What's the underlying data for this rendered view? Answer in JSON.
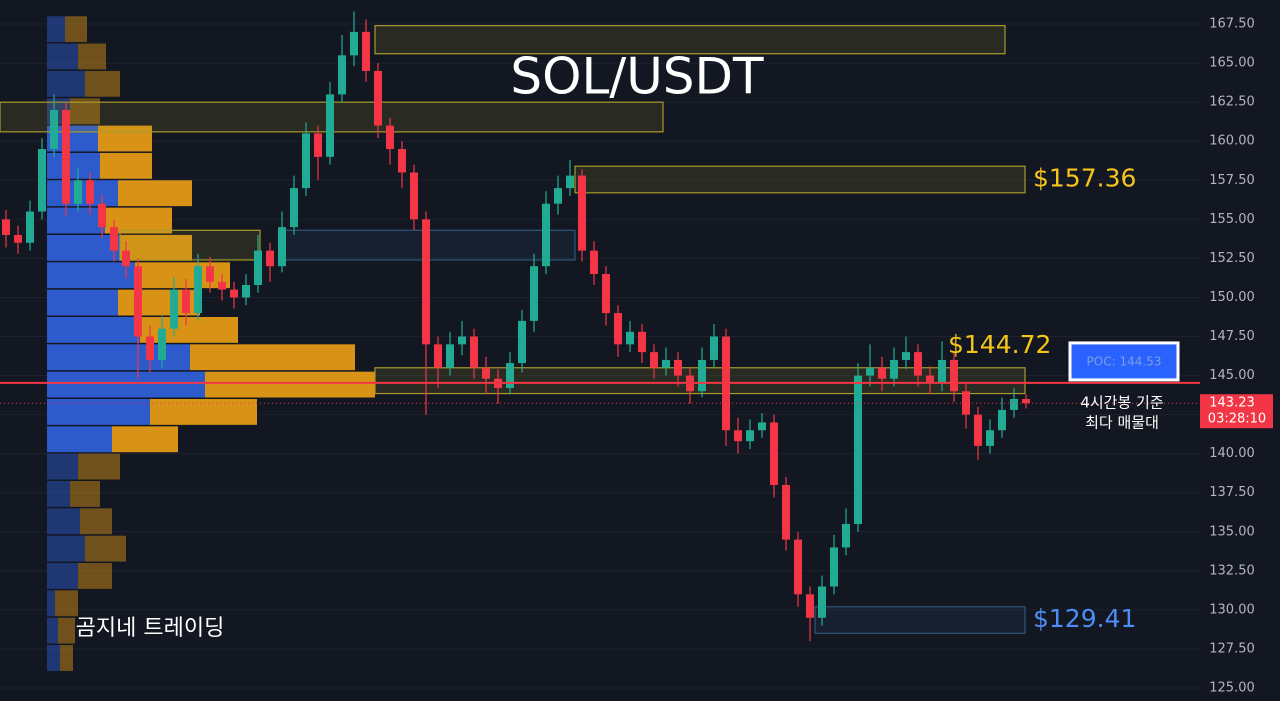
{
  "title": "SOL/USDT",
  "watermark": "곰지네 트레이딩",
  "chart_data": {
    "type": "candlestick",
    "open": [
      155.0,
      154.0,
      153.5,
      155.5,
      159.5,
      162.0,
      156.0,
      157.5,
      156.0,
      154.5,
      153.0,
      152.0,
      147.5,
      146.0,
      148.0,
      150.5,
      149.0,
      152.0,
      151.0,
      150.5,
      150.0,
      150.8,
      153.0,
      152.0,
      154.5,
      157.0,
      160.5,
      159.0,
      163.0,
      165.5,
      167.0,
      164.5,
      161.0,
      159.5,
      158.0,
      155.0,
      147.0,
      145.5,
      147.0,
      147.5,
      145.5,
      144.8,
      144.2,
      145.8,
      148.5,
      152.0,
      156.0,
      157.0,
      157.8,
      153.0,
      151.5,
      149.0,
      147.0,
      147.8,
      146.5,
      145.5,
      146.0,
      145.0,
      144.0,
      146.0,
      147.5,
      141.5,
      140.8,
      141.5,
      142.0,
      138.0,
      134.5,
      131.0,
      129.5,
      131.5,
      134.0,
      135.5,
      145.0,
      145.5,
      144.8,
      146.0,
      146.5,
      145.0,
      144.5,
      146.0,
      144.0,
      142.5,
      140.5,
      141.5,
      142.8,
      143.5
    ],
    "high": [
      155.6,
      154.6,
      156.2,
      160.2,
      163.0,
      162.5,
      158.3,
      158.0,
      156.6,
      155.0,
      153.6,
      152.5,
      148.2,
      148.8,
      151.3,
      151.2,
      152.8,
      152.6,
      151.5,
      151.0,
      151.5,
      154.0,
      153.5,
      155.5,
      157.8,
      161.2,
      161.0,
      163.8,
      166.8,
      168.3,
      167.8,
      165.0,
      161.5,
      160.0,
      158.5,
      155.5,
      147.5,
      147.8,
      148.5,
      148.0,
      146.2,
      145.4,
      146.5,
      149.2,
      152.8,
      156.8,
      157.8,
      158.8,
      158.2,
      153.6,
      152.0,
      149.5,
      148.5,
      148.3,
      147.0,
      146.8,
      146.5,
      145.5,
      146.8,
      148.3,
      148.0,
      142.3,
      142.2,
      142.6,
      142.5,
      138.5,
      135.0,
      131.5,
      132.2,
      134.8,
      136.5,
      145.8,
      147.0,
      146.2,
      146.8,
      147.5,
      147.0,
      145.6,
      147.2,
      146.5,
      144.5,
      143.0,
      142.2,
      143.6,
      144.2,
      143.8
    ],
    "low": [
      153.2,
      152.8,
      153.0,
      155.0,
      159.0,
      155.2,
      155.5,
      155.3,
      153.8,
      152.3,
      151.2,
      144.8,
      145.2,
      145.5,
      147.5,
      148.2,
      148.5,
      150.3,
      149.8,
      149.3,
      149.5,
      150.3,
      151.0,
      151.6,
      154.0,
      156.5,
      157.5,
      158.5,
      162.5,
      164.8,
      163.8,
      160.2,
      158.5,
      157.0,
      154.3,
      142.5,
      144.2,
      145.0,
      146.3,
      144.8,
      143.8,
      143.2,
      143.8,
      145.2,
      147.8,
      151.5,
      155.3,
      156.5,
      152.3,
      150.8,
      148.2,
      146.2,
      146.5,
      145.8,
      144.8,
      145.0,
      144.3,
      143.2,
      143.6,
      145.5,
      140.5,
      140.0,
      140.3,
      141.0,
      137.2,
      133.8,
      130.2,
      128.0,
      129.0,
      131.0,
      133.5,
      135.0,
      144.3,
      144.0,
      144.3,
      145.4,
      144.3,
      143.8,
      144.0,
      143.3,
      141.6,
      139.6,
      140.0,
      141.0,
      142.3,
      142.9
    ],
    "close": [
      154.0,
      153.5,
      155.5,
      159.5,
      162.0,
      156.0,
      157.5,
      156.0,
      154.5,
      153.0,
      152.0,
      147.5,
      146.0,
      148.0,
      150.5,
      149.0,
      152.0,
      151.0,
      150.5,
      150.0,
      150.8,
      153.0,
      152.0,
      154.5,
      157.0,
      160.5,
      159.0,
      163.0,
      165.5,
      167.0,
      164.5,
      161.0,
      159.5,
      158.0,
      155.0,
      147.0,
      145.5,
      147.0,
      147.5,
      145.5,
      144.8,
      144.2,
      145.8,
      148.5,
      152.0,
      156.0,
      157.0,
      157.8,
      153.0,
      151.5,
      149.0,
      147.0,
      147.8,
      146.5,
      145.5,
      146.0,
      145.0,
      144.0,
      146.0,
      147.5,
      141.5,
      140.8,
      141.5,
      142.0,
      138.0,
      134.5,
      131.0,
      129.5,
      131.5,
      134.0,
      135.5,
      145.0,
      145.5,
      144.8,
      146.0,
      146.5,
      145.0,
      144.5,
      146.0,
      144.0,
      142.5,
      140.5,
      141.5,
      142.8,
      143.5,
      143.23
    ],
    "up_color": "#22ab94",
    "down_color": "#f23645",
    "ylim": [
      124.17,
      169.04
    ],
    "yticks": [
      {
        "value": 125,
        "label": "125.00"
      },
      {
        "value": 127.5,
        "label": "127.50"
      },
      {
        "value": 130,
        "label": "130.00"
      },
      {
        "value": 132.5,
        "label": "132.50"
      },
      {
        "value": 135,
        "label": "135.00"
      },
      {
        "value": 137.5,
        "label": "137.50"
      },
      {
        "value": 140,
        "label": "140.00"
      },
      {
        "value": 142.5,
        "label": "142.50"
      },
      {
        "value": 145,
        "label": "145.00"
      },
      {
        "value": 147.5,
        "label": "147.50"
      },
      {
        "value": 150,
        "label": "150.00"
      },
      {
        "value": 152.5,
        "label": "152.50"
      },
      {
        "value": 155,
        "label": "155.00"
      },
      {
        "value": 157.5,
        "label": "157.50"
      },
      {
        "value": 160,
        "label": "160.00"
      },
      {
        "value": 162.5,
        "label": "162.50"
      },
      {
        "value": 165,
        "label": "165.00"
      },
      {
        "value": 167.5,
        "label": "167.50"
      }
    ],
    "grid": true,
    "volume_profile": {
      "bins": [
        126.0,
        127.75,
        129.5,
        131.25,
        133.0,
        134.75,
        136.5,
        138.25,
        140.0,
        141.75,
        143.5,
        145.25,
        147.0,
        148.75,
        150.5,
        152.25,
        154.0,
        155.75,
        157.5,
        159.25,
        161.0,
        162.75,
        164.5,
        166.25,
        168.0
      ],
      "buy": [
        13,
        11,
        8,
        31,
        38,
        33,
        23,
        31,
        65,
        103,
        158,
        143,
        93,
        71,
        88,
        73,
        58,
        71,
        53,
        51,
        23,
        38,
        31,
        18
      ],
      "sell": [
        13,
        17,
        23,
        34,
        41,
        32,
        30,
        42,
        66,
        107,
        170,
        165,
        98,
        82,
        95,
        72,
        67,
        74,
        52,
        54,
        30,
        35,
        28,
        22
      ],
      "buy_color": "#2f5fd6",
      "sell_color": "#e39a17"
    },
    "zones": [
      {
        "low": 165.6,
        "high": 167.4,
        "color": "#a89a2a"
      },
      {
        "low": 160.6,
        "high": 162.5,
        "color": "#a89a2a"
      },
      {
        "low": 156.7,
        "high": 158.4,
        "color": "#a89a2a",
        "label": "$157.36"
      },
      {
        "low": 152.4,
        "high": 154.3,
        "color": "#2c5878"
      },
      {
        "low": 152.4,
        "high": 154.3,
        "color": "#a89a2a"
      },
      {
        "low": 143.85,
        "high": 145.5,
        "color": "#a89a2a",
        "label": "$144.72"
      },
      {
        "low": 128.5,
        "high": 130.2,
        "color": "#2c5878",
        "label": "$129.41"
      }
    ],
    "poc": {
      "value": 144.53,
      "label": "POC: 144.53",
      "color": "#f23645"
    },
    "last_price": {
      "value": 143.23,
      "label": "143.23",
      "countdown": "03:28:10",
      "color": "#f23645"
    },
    "annotation": [
      "4시간봉 기준",
      "최다 매물대"
    ]
  }
}
